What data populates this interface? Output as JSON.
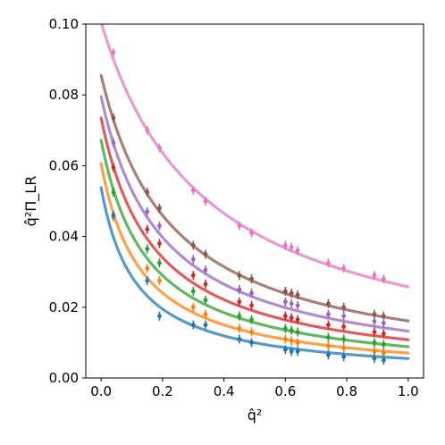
{
  "chart_data": {
    "type": "line",
    "title": "",
    "xlabel": "q̂²",
    "ylabel": "q̂²Π_LR",
    "xlim": [
      -0.05,
      1.05
    ],
    "ylim": [
      0.0,
      0.1
    ],
    "grid": false,
    "legend": "none",
    "x_ticks": [
      0.0,
      0.2,
      0.4,
      0.6,
      0.8,
      1.0
    ],
    "x_tick_labels": [
      "0.0",
      "0.2",
      "0.4",
      "0.6",
      "0.8",
      "1.0"
    ],
    "y_ticks": [
      0.0,
      0.02,
      0.04,
      0.06,
      0.08,
      0.1
    ],
    "y_tick_labels": [
      "0.00",
      "0.02",
      "0.04",
      "0.06",
      "0.08",
      "0.10"
    ],
    "data_x": [
      0.04,
      0.15,
      0.19,
      0.3,
      0.34,
      0.45,
      0.49,
      0.6,
      0.62,
      0.64,
      0.74,
      0.79,
      0.89,
      0.92
    ],
    "series": [
      {
        "color": "#e377c2",
        "fit": {
          "a": 0.1005,
          "b": 2.9
        },
        "y": [
          0.092,
          0.07,
          0.065,
          0.053,
          0.05,
          0.043,
          0.041,
          0.0375,
          0.037,
          0.036,
          0.0325,
          0.031,
          0.029,
          0.028
        ]
      },
      {
        "color": "#8c564b",
        "fit": {
          "a": 0.0855,
          "b": 4.3
        },
        "y": [
          0.0735,
          0.0525,
          0.048,
          0.0375,
          0.035,
          0.029,
          0.028,
          0.0245,
          0.024,
          0.0235,
          0.021,
          0.02,
          0.018,
          0.0175
        ]
      },
      {
        "color": "#9467bd",
        "fit": {
          "a": 0.0795,
          "b": 5.0
        },
        "y": [
          0.0665,
          0.047,
          0.043,
          0.0335,
          0.0305,
          0.025,
          0.024,
          0.0215,
          0.021,
          0.0205,
          0.018,
          0.0175,
          0.016,
          0.0155
        ]
      },
      {
        "color": "#d62728",
        "fit": {
          "a": 0.0735,
          "b": 5.8
        },
        "y": [
          0.0595,
          0.042,
          0.038,
          0.029,
          0.0265,
          0.0215,
          0.0205,
          0.0175,
          0.017,
          0.0165,
          0.015,
          0.0145,
          0.013,
          0.0125
        ]
      },
      {
        "color": "#2ca02c",
        "fit": {
          "a": 0.0672,
          "b": 6.6
        },
        "y": [
          0.0525,
          0.0365,
          0.0325,
          0.0245,
          0.022,
          0.0175,
          0.0165,
          0.014,
          0.0135,
          0.013,
          0.0115,
          0.011,
          0.01,
          0.0095
        ]
      },
      {
        "color": "#ff7f0e",
        "fit": {
          "a": 0.0606,
          "b": 7.6
        },
        "y": [
          0.0455,
          0.031,
          0.0275,
          0.02,
          0.018,
          0.014,
          0.013,
          0.011,
          0.0105,
          0.01,
          0.009,
          0.0085,
          0.0075,
          0.007
        ]
      },
      {
        "color": "#1f77b4",
        "fit": {
          "a": 0.0538,
          "b": 8.8
        },
        "y": [
          0.046,
          0.0275,
          0.0175,
          0.015,
          0.015,
          0.011,
          0.01,
          0.008,
          0.0075,
          0.0075,
          0.0065,
          0.006,
          0.0055,
          0.005
        ]
      }
    ]
  }
}
